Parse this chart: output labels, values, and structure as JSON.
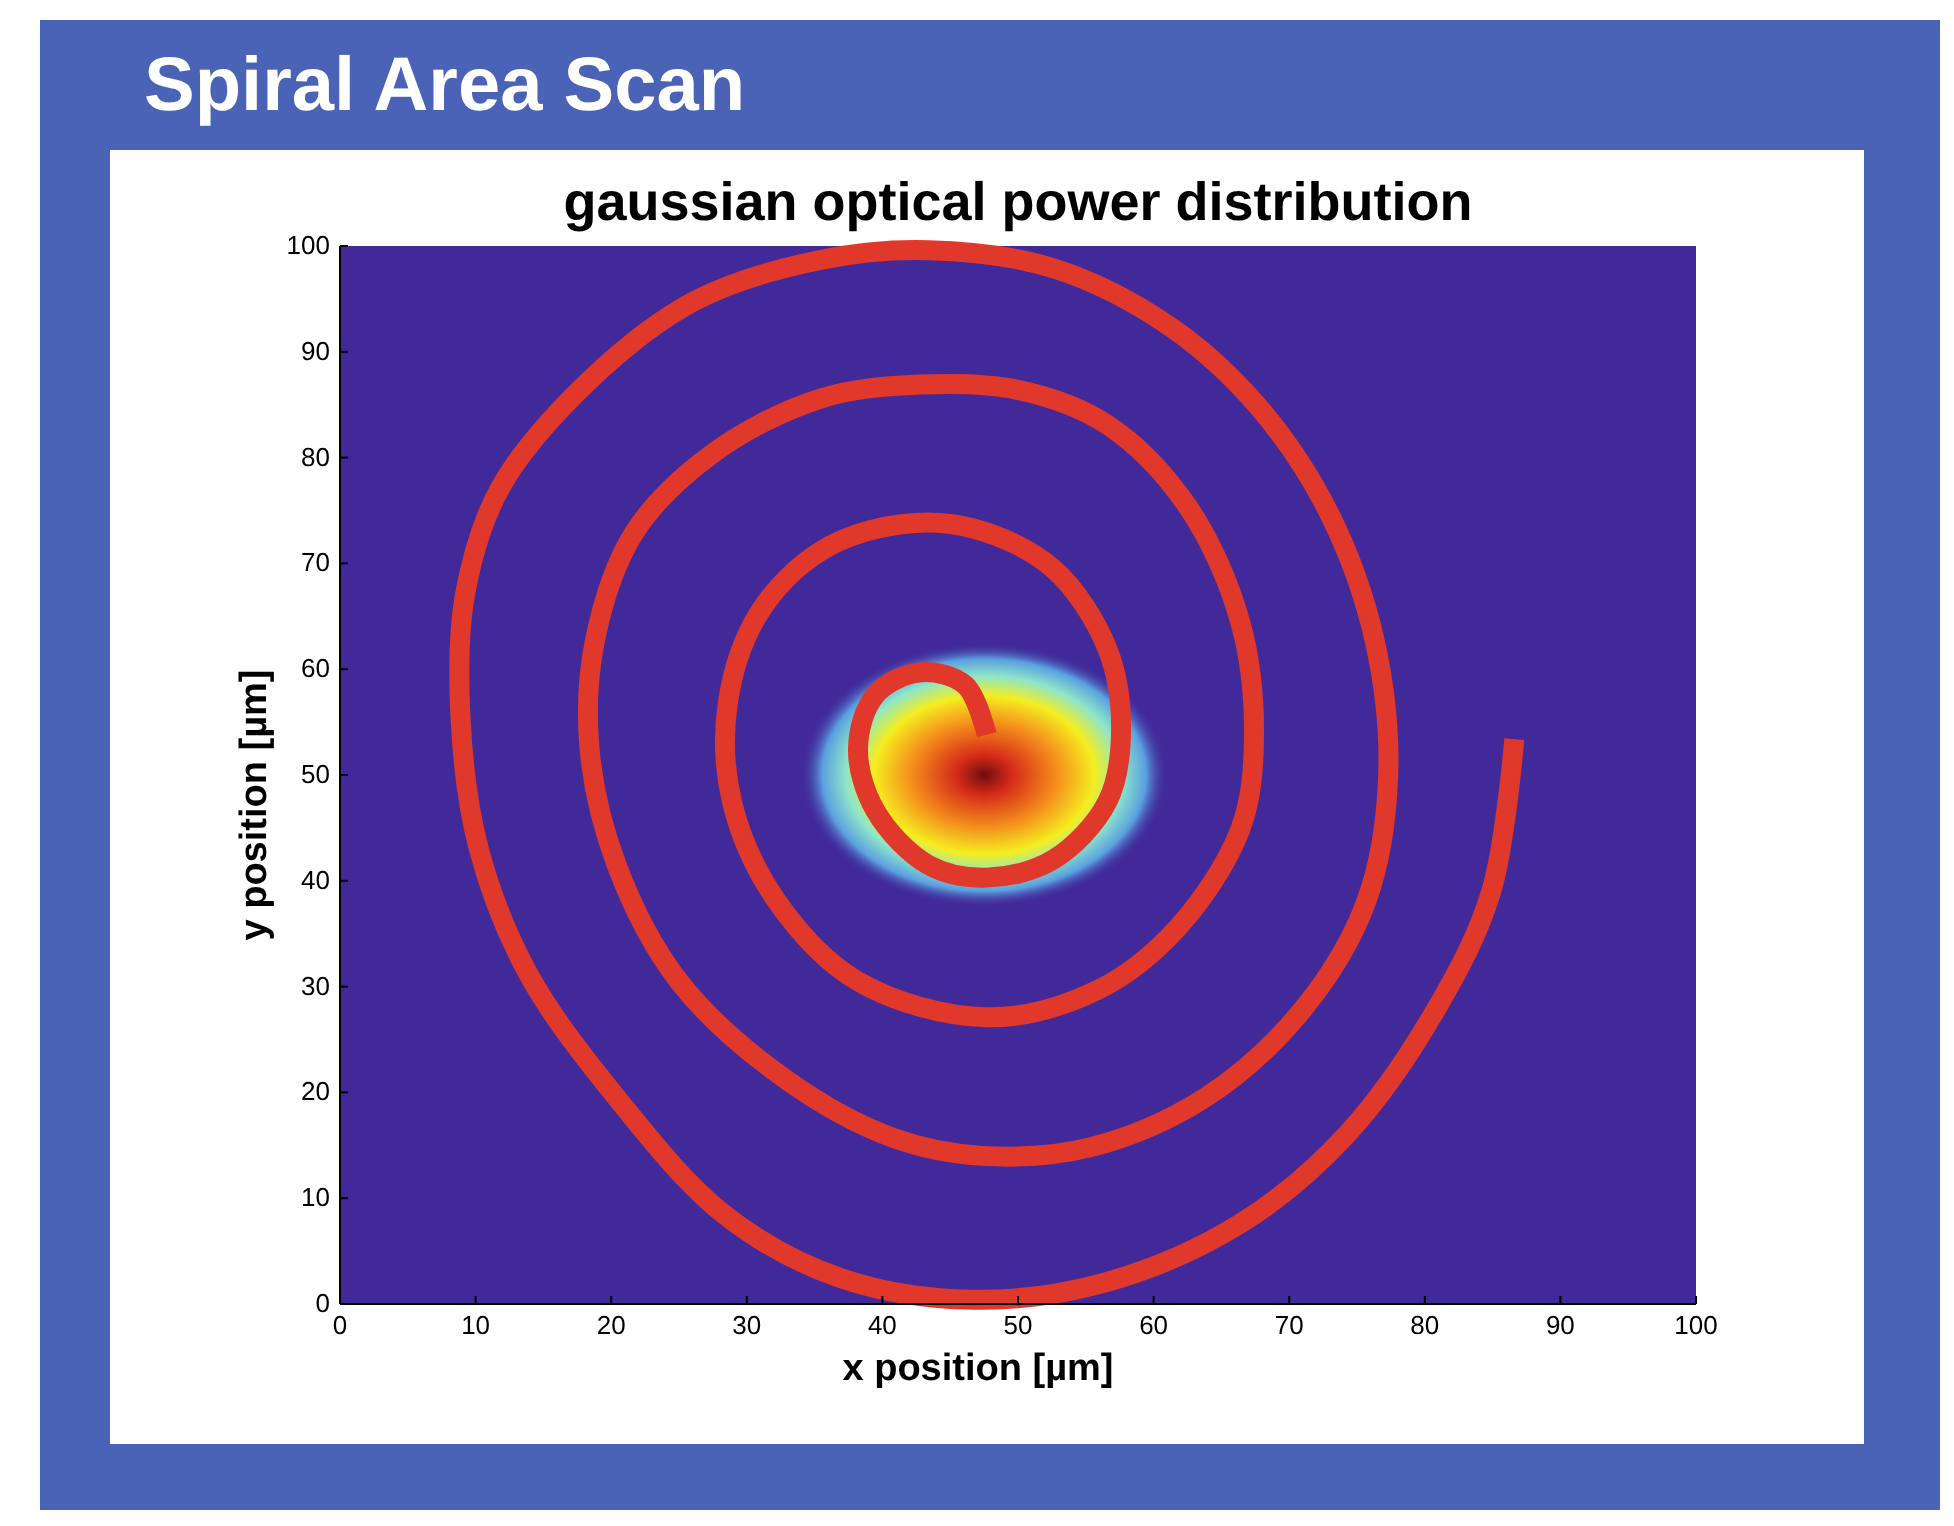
{
  "chart_data": {
    "type": "line",
    "title": "Spiral Area Scan",
    "subtitle": "gaussian optical power distribution",
    "xlabel": "x position [µm]",
    "ylabel": "y position  [µm]",
    "xlim": [
      0,
      100
    ],
    "ylim": [
      0,
      100
    ],
    "xticks": [
      0,
      10,
      20,
      30,
      40,
      50,
      60,
      70,
      80,
      90,
      100
    ],
    "yticks": [
      0,
      10,
      20,
      30,
      40,
      50,
      60,
      70,
      80,
      90,
      100
    ],
    "grid": false,
    "marker": "none",
    "line_style": "solid",
    "series": [
      {
        "color": "#e0382a",
        "x": [
          47.7,
          46.1,
          42.8,
          39.5,
          38.2,
          39.5,
          43.4,
          47.7,
          52.6,
          56.6,
          57.6,
          56.6,
          52.6,
          46.7,
          41.4,
          35.5,
          30.9,
          28.6,
          28.9,
          32.2,
          38.2,
          47.7,
          55.9,
          61.8,
          66.4,
          67.4,
          66.4,
          62.5,
          56.6,
          50.0,
          42.8,
          35.5,
          27.6,
          21.7,
          18.8,
          18.4,
          20.4,
          25.0,
          32.9,
          40.8,
          47.4,
          55.3,
          63.8,
          71.1,
          75.7,
          77.3,
          76.3,
          73.0,
          67.8,
          61.2,
          52.6,
          43.4,
          35.5,
          26.3,
          18.4,
          11.8,
          9.2,
          8.9,
          10.2,
          13.8,
          20.4,
          28.3,
          36.8,
          46.7,
          56.6,
          66.4,
          74.3,
          80.9,
          84.9,
          86.6
        ],
        "values": [
          53.8,
          58.5,
          59.7,
          57.6,
          52.5,
          46.6,
          41.5,
          40.3,
          42.0,
          47.5,
          54.2,
          61.9,
          69.5,
          73.3,
          73.7,
          71.2,
          65.3,
          56.8,
          47.5,
          38.1,
          30.5,
          27.1,
          29.7,
          35.6,
          44.9,
          53.4,
          64.4,
          75.4,
          83.1,
          86.4,
          86.9,
          85.6,
          80.5,
          72.9,
          62.7,
          52.5,
          41.5,
          30.5,
          21.2,
          15.7,
          14.0,
          14.8,
          19.5,
          28.0,
          38.1,
          50.0,
          62.7,
          74.6,
          84.7,
          92.4,
          97.9,
          99.6,
          98.7,
          94.9,
          87.3,
          77.1,
          66.9,
          55.1,
          43.2,
          31.4,
          19.5,
          8.5,
          2.5,
          0.4,
          2.1,
          7.6,
          16.1,
          28.0,
          39.0,
          53.4
        ]
      }
    ]
  }
}
